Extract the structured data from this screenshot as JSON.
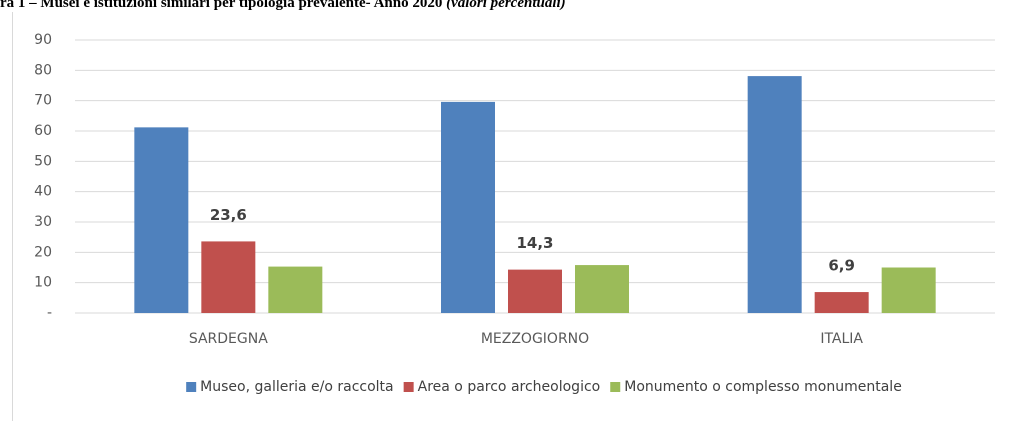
{
  "chart_data": {
    "type": "bar",
    "title": "ra 1 – Musei e istituzioni similari per tipologia prevalente- Anno 2020",
    "subtitle": "(valori percentuali)",
    "categories": [
      "SARDEGNA",
      "MEZZOGIORNO",
      "ITALIA"
    ],
    "series": [
      {
        "name": "Museo, galleria e/o raccolta",
        "color": "#4f81bd",
        "values": [
          61.2,
          69.6,
          78.1
        ]
      },
      {
        "name": "Area o parco archeologico",
        "color": "#c0504d",
        "values": [
          23.6,
          14.3,
          6.9
        ],
        "value_labels": [
          "23,6",
          "14,3",
          "6,9"
        ]
      },
      {
        "name": "Monumento o complesso monumentale",
        "color": "#9bbb59",
        "values": [
          15.3,
          15.8,
          15.0
        ]
      }
    ],
    "ylim": [
      0,
      90
    ],
    "yticks": [
      {
        "value": 0,
        "label": "-"
      },
      10,
      20,
      30,
      40,
      50,
      60,
      70,
      80,
      90
    ],
    "grid": true,
    "legend": "bottom"
  }
}
